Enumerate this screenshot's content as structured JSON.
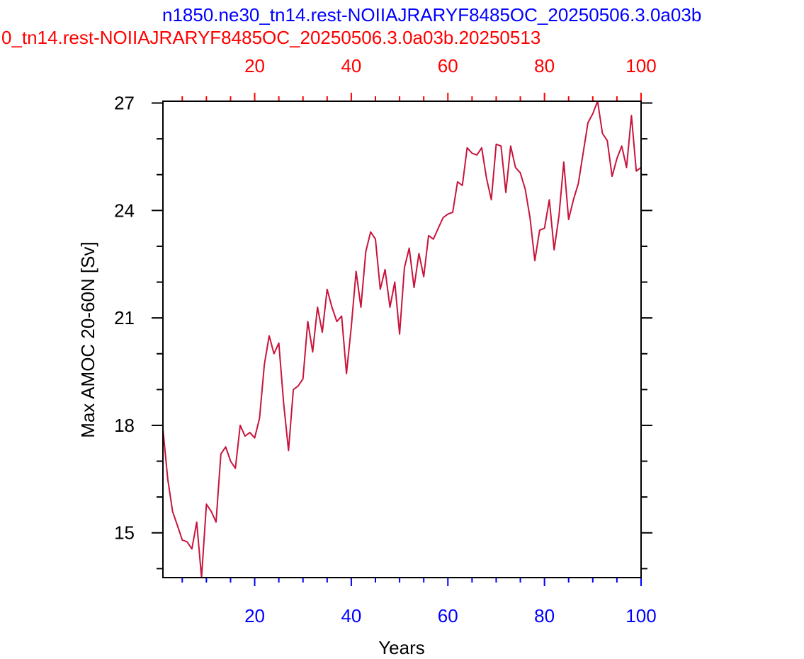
{
  "chart_data": {
    "type": "line",
    "title_top": "n1850.ne30_tn14.rest-NOIIAJRARYF8485OC_20250506.3.0a03b",
    "title_second": "0_tn14.rest-NOIIAJRARYF8485OC_20250506.3.0a03b.20250513",
    "xlabel": "Years",
    "ylabel": "Max AMOC 20-60N [Sv]",
    "xlim": [
      1,
      100
    ],
    "ylim": [
      13.75,
      27.05
    ],
    "x_ticks": [
      "20",
      "40",
      "60",
      "80",
      "100"
    ],
    "x_tick_values": [
      20,
      40,
      60,
      80,
      100
    ],
    "top_x_ticks": [
      "20",
      "40",
      "60",
      "80",
      "100"
    ],
    "y_ticks": [
      "15",
      "18",
      "21",
      "24",
      "27"
    ],
    "y_tick_values": [
      15,
      18,
      21,
      24,
      27
    ],
    "colors": {
      "series": "#c8143c",
      "top_axis": "#ff0000",
      "bottom_axis": "#0000ff",
      "frame": "#000000"
    },
    "series": [
      {
        "x": [
          1,
          2,
          3,
          4,
          5,
          6,
          7,
          8,
          9,
          10,
          11,
          12,
          13,
          14,
          15,
          16,
          17,
          18,
          19,
          20,
          21,
          22,
          23,
          24,
          25,
          26,
          27,
          28,
          29,
          30,
          31,
          32,
          33,
          34,
          35,
          36,
          37,
          38,
          39,
          40,
          41,
          42,
          43,
          44,
          45,
          46,
          47,
          48,
          49,
          50,
          51,
          52,
          53,
          54,
          55,
          56,
          57,
          58,
          59,
          60,
          61,
          62,
          63,
          64,
          65,
          66,
          67,
          68,
          69,
          70,
          71,
          72,
          73,
          74,
          75,
          76,
          77,
          78,
          79,
          80,
          81,
          82,
          83,
          84,
          85,
          86,
          87,
          88,
          89,
          90,
          91,
          92,
          93,
          94,
          95,
          96,
          97,
          98,
          99,
          100
        ],
        "values": [
          17.9,
          16.5,
          15.6,
          15.2,
          14.8,
          14.75,
          14.55,
          15.3,
          13.75,
          15.8,
          15.6,
          15.3,
          17.2,
          17.4,
          17.0,
          16.8,
          18.0,
          17.7,
          17.8,
          17.65,
          18.2,
          19.7,
          20.5,
          20.0,
          20.3,
          18.6,
          17.3,
          19.0,
          19.1,
          19.3,
          20.9,
          20.05,
          21.3,
          20.6,
          21.8,
          21.3,
          20.9,
          21.05,
          19.45,
          20.75,
          22.3,
          21.3,
          22.85,
          23.4,
          23.2,
          21.8,
          22.35,
          21.3,
          22.0,
          20.55,
          22.4,
          22.95,
          21.85,
          22.8,
          22.15,
          23.3,
          23.2,
          23.5,
          23.8,
          23.9,
          23.95,
          24.8,
          24.7,
          25.75,
          25.6,
          25.55,
          25.75,
          24.9,
          24.3,
          25.85,
          25.8,
          24.5,
          25.8,
          25.2,
          25.05,
          24.6,
          23.8,
          22.6,
          23.45,
          23.5,
          24.3,
          22.9,
          23.85,
          25.35,
          23.75,
          24.3,
          24.75,
          25.6,
          26.45,
          26.7,
          27.05,
          26.15,
          25.95,
          24.95,
          25.45,
          25.8,
          25.2,
          26.65,
          25.1,
          25.2
        ]
      }
    ]
  }
}
